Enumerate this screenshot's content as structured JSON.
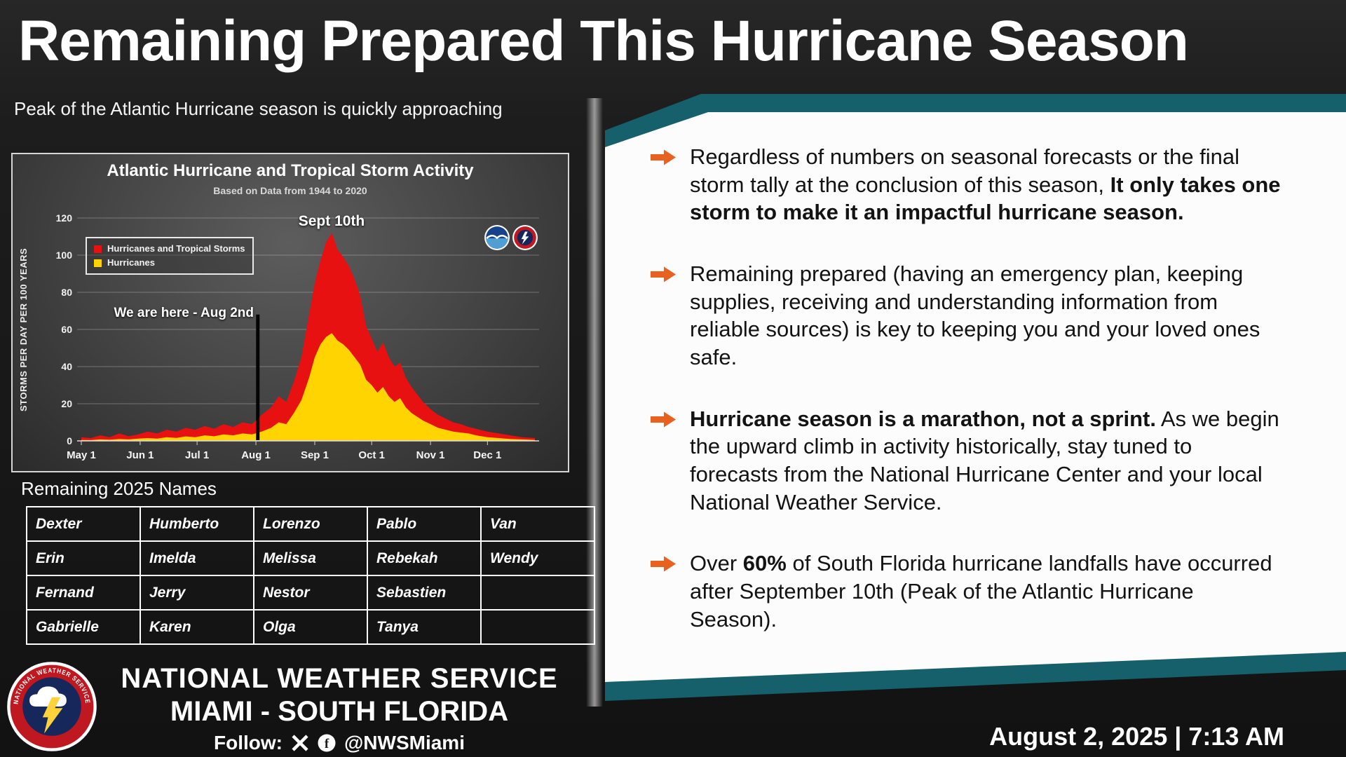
{
  "header": {
    "title": "Remaining Prepared This Hurricane Season",
    "subtitle": "Peak of the Atlantic Hurricane season is quickly approaching"
  },
  "bullets": [
    {
      "segments": [
        {
          "t": "Regardless of numbers on seasonal forecasts or the final storm tally at the conclusion of this season, ",
          "b": false
        },
        {
          "t": "It only takes one storm to make it an impactful hurricane season.",
          "b": true
        }
      ]
    },
    {
      "segments": [
        {
          "t": "Remaining prepared (having an emergency plan, keeping supplies, receiving and understanding information from reliable sources) is key to keeping you and your loved ones safe.",
          "b": false
        }
      ]
    },
    {
      "segments": [
        {
          "t": "Hurricane season is a marathon, not a sprint.",
          "b": true
        },
        {
          "t": " As we begin the upward climb in activity historically, stay tuned to forecasts from the National Hurricane Center and your local National Weather Service.",
          "b": false
        }
      ]
    },
    {
      "segments": [
        {
          "t": "Over ",
          "b": false
        },
        {
          "t": "60%",
          "b": true
        },
        {
          "t": " of South Florida hurricane landfalls have occurred after September 10th (Peak of the Atlantic Hurricane Season).",
          "b": false
        }
      ]
    }
  ],
  "chart_data": {
    "type": "area",
    "title": "Atlantic Hurricane and Tropical Storm Activity",
    "subtitle": "Based on Data from 1944 to 2020",
    "ylabel": "STORMS PER DAY PER 100 YEARS",
    "ylim": [
      0,
      120
    ],
    "yticks": [
      0,
      20,
      40,
      60,
      80,
      100,
      120
    ],
    "xtick_labels": [
      "May 1",
      "Jun 1",
      "Jul 1",
      "Aug 1",
      "Sep 1",
      "Oct 1",
      "Nov 1",
      "Dec 1"
    ],
    "xtick_days": [
      0,
      31,
      61,
      92,
      123,
      153,
      184,
      214
    ],
    "x_range_days": [
      0,
      239
    ],
    "grid": true,
    "legend": [
      "Hurricanes and Tropical Storms",
      "Hurricanes"
    ],
    "series": [
      {
        "name": "Hurricanes and Tropical Storms",
        "color": "#e81111",
        "x": [
          0,
          5,
          10,
          15,
          20,
          25,
          30,
          35,
          40,
          45,
          50,
          55,
          60,
          65,
          70,
          75,
          80,
          85,
          90,
          95,
          100,
          104,
          108,
          112,
          116,
          120,
          123,
          126,
          129,
          132,
          135,
          138,
          141,
          144,
          147,
          150,
          153,
          156,
          159,
          162,
          165,
          168,
          171,
          174,
          177,
          180,
          184,
          188,
          192,
          196,
          200,
          204,
          208,
          214,
          220,
          226,
          232,
          239
        ],
        "values": [
          2,
          1.5,
          3,
          2,
          4,
          2.5,
          3.5,
          5,
          4,
          6,
          5,
          7,
          6,
          8,
          6.5,
          9,
          7.5,
          10,
          9,
          14,
          18,
          24,
          21,
          32,
          45,
          68,
          85,
          97,
          107,
          112,
          103,
          99,
          94,
          87,
          78,
          62,
          55,
          48,
          53,
          45,
          40,
          42,
          34,
          29,
          25,
          21,
          17,
          14,
          12,
          10,
          9,
          7.5,
          6.5,
          5,
          4,
          3,
          2,
          1.5
        ]
      },
      {
        "name": "Hurricanes",
        "color": "#ffd400",
        "x": [
          0,
          5,
          10,
          15,
          20,
          25,
          30,
          35,
          40,
          45,
          50,
          55,
          60,
          65,
          70,
          75,
          80,
          85,
          90,
          95,
          100,
          104,
          108,
          112,
          116,
          120,
          123,
          126,
          129,
          132,
          135,
          138,
          141,
          144,
          147,
          150,
          153,
          156,
          159,
          162,
          165,
          168,
          171,
          174,
          177,
          180,
          184,
          188,
          192,
          196,
          200,
          204,
          208,
          214,
          220,
          226,
          232,
          239
        ],
        "values": [
          0.5,
          0.4,
          0.8,
          0.6,
          1,
          0.8,
          1.2,
          1.5,
          1.2,
          2,
          1.6,
          2.4,
          2,
          3,
          2.5,
          3.5,
          3,
          4,
          3.5,
          5,
          7,
          10,
          9,
          15,
          22,
          34,
          45,
          52,
          56,
          58,
          54,
          52,
          49,
          45,
          41,
          33,
          30,
          26,
          29,
          24,
          21,
          23,
          18,
          15,
          13,
          11,
          9,
          7,
          6,
          5,
          4.5,
          4,
          3,
          2,
          1.5,
          1,
          0.8,
          0.5
        ]
      }
    ],
    "annotations": [
      {
        "text": "Sept 10th",
        "day": 132
      },
      {
        "text": "We are here - Aug 2nd",
        "day": 93,
        "line_top_value": 68
      }
    ]
  },
  "names_table": {
    "heading": "Remaining 2025 Names",
    "rows": [
      [
        "Dexter",
        "Humberto",
        "Lorenzo",
        "Pablo",
        "Van"
      ],
      [
        "Erin",
        "Imelda",
        "Melissa",
        "Rebekah",
        "Wendy"
      ],
      [
        "Fernand",
        "Jerry",
        "Nestor",
        "Sebastien",
        ""
      ],
      [
        "Gabrielle",
        "Karen",
        "Olga",
        "Tanya",
        ""
      ]
    ]
  },
  "footer": {
    "org_line1": "NATIONAL WEATHER SERVICE",
    "org_line2": "MIAMI - SOUTH FLORIDA",
    "follow_label": "Follow:",
    "social_handle": "@NWSMiami",
    "datetime": "August 2, 2025 | 7:13 AM",
    "logo_ring_text": "NATIONAL WEATHER SERVICE"
  },
  "icons": {
    "facebook_icon": "f"
  },
  "colors": {
    "accent_teal": "#15606b",
    "arrow_orange": "#e8611f",
    "storms_red": "#e81111",
    "hurricanes_yellow": "#ffd400"
  }
}
